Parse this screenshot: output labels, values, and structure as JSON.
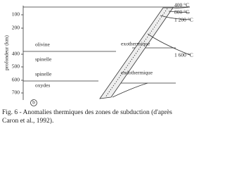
{
  "axis": {
    "label": "profondeur (km)",
    "ticks": [
      "100",
      "200",
      "400",
      "500",
      "600",
      "700"
    ]
  },
  "isotherms": [
    "400 °C",
    "800 °C",
    "1 200 °C",
    "1 600 °C"
  ],
  "phases": [
    "olivine",
    "spinelle",
    "spinelle",
    "oxydes"
  ],
  "transitions": [
    "exothermique",
    "endothermique"
  ],
  "panel": "b",
  "caption": [
    "Fig. 6 - Anomalies thermiques des zones de subduction (d'après",
    "Caron et al., 1992)."
  ]
}
